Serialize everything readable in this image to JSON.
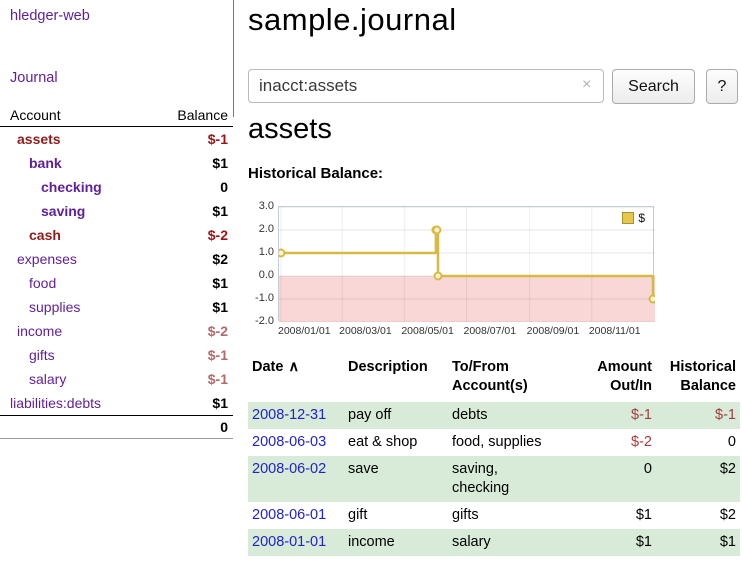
{
  "sidebar": {
    "brand": "hledger-web",
    "journal_label": "Journal",
    "header": {
      "account": "Account",
      "balance": "Balance"
    },
    "accounts": [
      {
        "name": "assets",
        "balance": "$-1",
        "level": 1,
        "current": true,
        "negative": true
      },
      {
        "name": "bank",
        "balance": "$1",
        "level": 2,
        "current": true,
        "negative": false
      },
      {
        "name": "checking",
        "balance": "0",
        "level": 3,
        "current": true,
        "negative": false
      },
      {
        "name": "saving",
        "balance": "$1",
        "level": 3,
        "current": true,
        "negative": false
      },
      {
        "name": "cash",
        "balance": "$-2",
        "level": 2,
        "current": true,
        "negative": true
      },
      {
        "name": "expenses",
        "balance": "$2",
        "level": 1,
        "current": false,
        "negative": false
      },
      {
        "name": "food",
        "balance": "$1",
        "level": 2,
        "current": false,
        "negative": false
      },
      {
        "name": "supplies",
        "balance": "$1",
        "level": 2,
        "current": false,
        "negative": false
      },
      {
        "name": "income",
        "balance": "$-2",
        "level": 1,
        "current": false,
        "negative": true
      },
      {
        "name": "gifts",
        "balance": "$-1",
        "level": 2,
        "current": false,
        "negative": true
      },
      {
        "name": "salary",
        "balance": "$-1",
        "level": 2,
        "current": false,
        "negative": true
      },
      {
        "name": "liabilities:debts",
        "balance": "$1",
        "level": 0,
        "current": false,
        "negative": false
      }
    ],
    "total": "0"
  },
  "main": {
    "title": "sample.journal",
    "search": {
      "value": "inacct:assets",
      "clear_icon": "×",
      "button_label": "Search",
      "help_label": "?"
    },
    "heading": "assets",
    "chart_label": "Historical Balance:"
  },
  "chart_data": {
    "type": "line",
    "title": "Historical Balance",
    "step": true,
    "x_domain": [
      "2008-01-01",
      "2008-12-31"
    ],
    "ylim": [
      -2,
      3
    ],
    "yticks": [
      "3.0",
      "2.0",
      "1.0",
      "0.0",
      "-1.0",
      "-2.0"
    ],
    "xticks": [
      "2008/01/01",
      "2008/03/01",
      "2008/05/01",
      "2008/07/01",
      "2008/09/01",
      "2008/11/01"
    ],
    "series": [
      {
        "name": "$",
        "x": [
          "2008-01-01",
          "2008-06-01",
          "2008-06-02",
          "2008-06-03",
          "2008-12-31"
        ],
        "values": [
          1,
          2,
          2,
          0,
          -1
        ]
      }
    ],
    "legend": {
      "label": "$",
      "position": "top-right",
      "swatch_color": "#e8c84c",
      "swatch_border": "#a8922e"
    },
    "line_color": "#d9b945",
    "marker_fill": "#fdf3cd",
    "negative_region_color": "#f9d7d7",
    "grid": true
  },
  "table": {
    "headers": [
      {
        "text": "Date",
        "sort": "∧",
        "align": "left"
      },
      {
        "text": "Description",
        "align": "left"
      },
      {
        "text": "To/From\nAccount(s)",
        "align": "left"
      },
      {
        "text": "Amount\nOut/In",
        "align": "right"
      },
      {
        "text": "Historical\nBalance",
        "align": "right"
      }
    ],
    "rows": [
      {
        "date": "2008-12-31",
        "description": "pay off",
        "accounts": "debts",
        "amount": "$-1",
        "amount_neg": true,
        "balance": "$-1",
        "balance_neg": true,
        "shaded": true
      },
      {
        "date": "2008-06-03",
        "description": "eat & shop",
        "accounts": "food, supplies",
        "amount": "$-2",
        "amount_neg": true,
        "balance": "0",
        "balance_neg": false,
        "shaded": false
      },
      {
        "date": "2008-06-02",
        "description": "save",
        "accounts": "saving,\nchecking",
        "amount": "0",
        "amount_neg": false,
        "balance": "$2",
        "balance_neg": false,
        "shaded": true
      },
      {
        "date": "2008-06-01",
        "description": "gift",
        "accounts": "gifts",
        "amount": "$1",
        "amount_neg": false,
        "balance": "$2",
        "balance_neg": false,
        "shaded": false
      },
      {
        "date": "2008-01-01",
        "description": "income",
        "accounts": "salary",
        "amount": "$1",
        "amount_neg": false,
        "balance": "$1",
        "balance_neg": false,
        "shaded": true
      }
    ]
  }
}
